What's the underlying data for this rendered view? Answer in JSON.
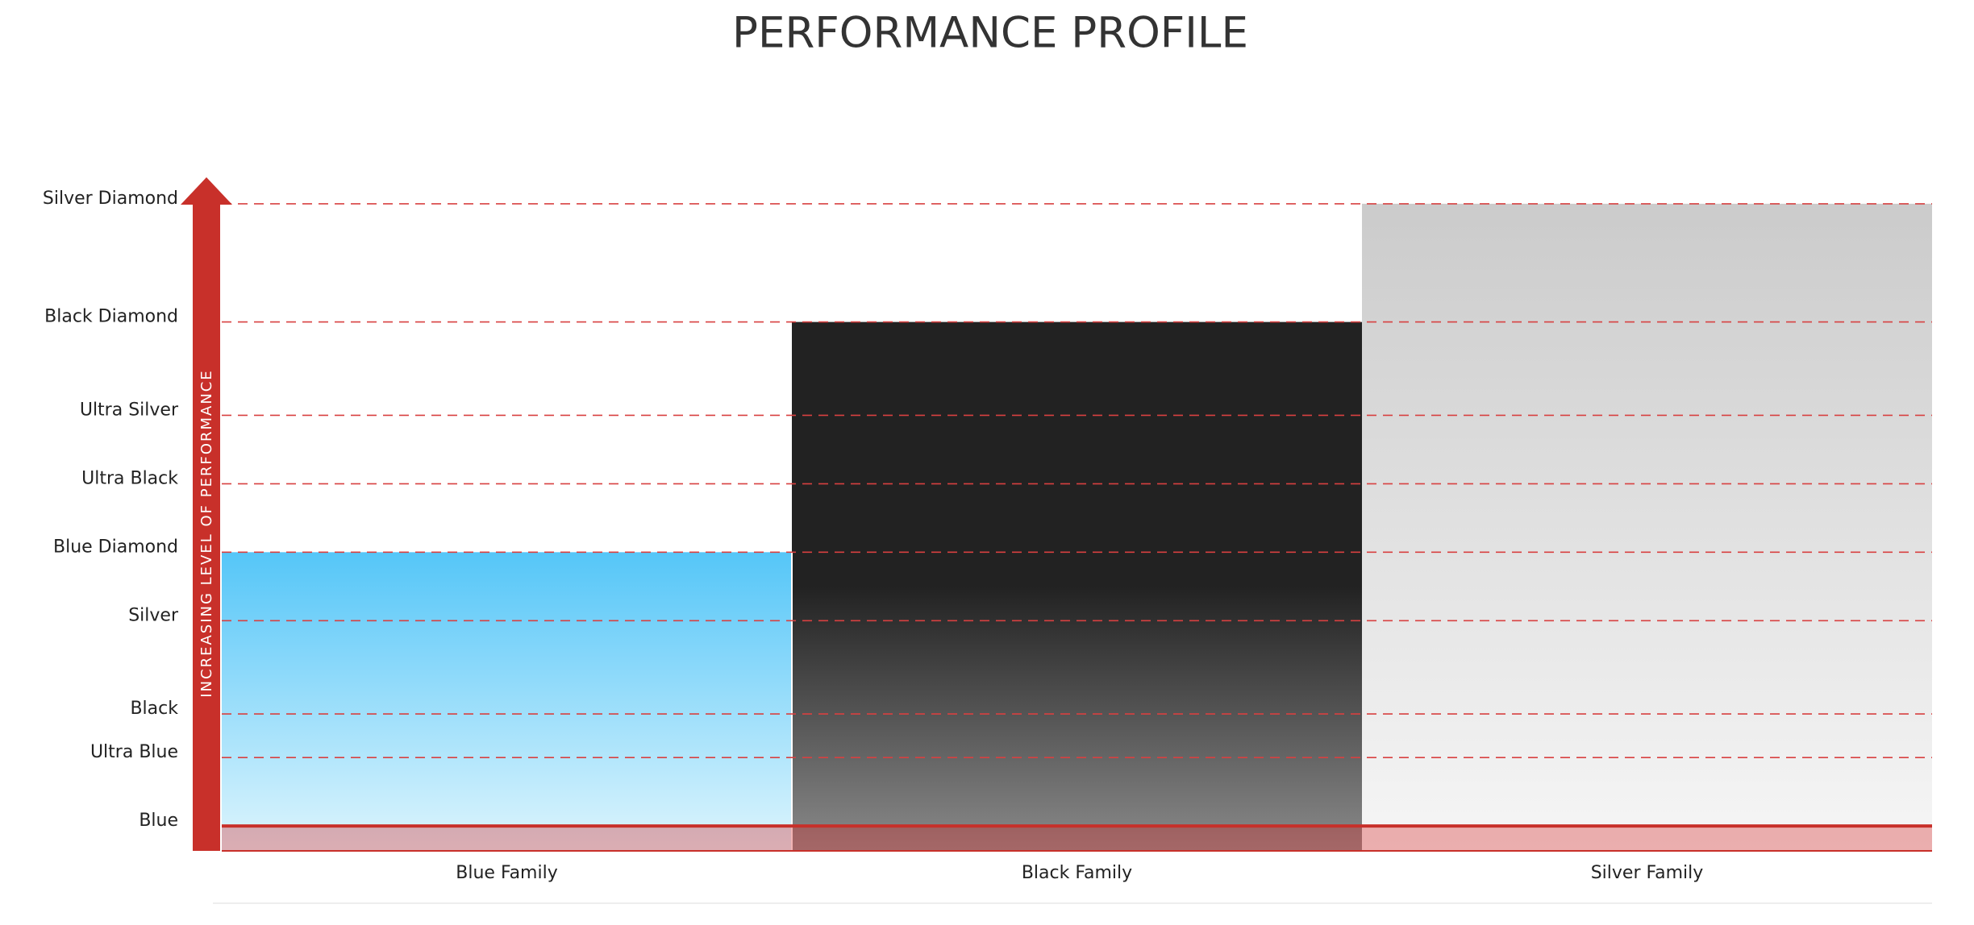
{
  "chart_data": {
    "type": "bar",
    "title": "PERFORMANCE PROFILE",
    "y_label": "INCREASING LEVEL OF PERFORMANCE",
    "categories": [
      "Blue Family",
      "Black Family",
      "Silver Family"
    ],
    "values": [
      44,
      81,
      100
    ],
    "colors": [
      [
        "#55c6f8",
        "#def5fd"
      ],
      [
        "#222222",
        "#8a8a8a"
      ],
      [
        "#cbcbcb",
        "#f6f6f6"
      ]
    ],
    "ylim": [
      -4,
      104
    ],
    "yticks": [
      {
        "value": 0,
        "label": "Blue"
      },
      {
        "value": 11,
        "label": "Ultra Blue"
      },
      {
        "value": 18,
        "label": "Black"
      },
      {
        "value": 33,
        "label": "Silver"
      },
      {
        "value": 44,
        "label": "Blue Diamond"
      },
      {
        "value": 55,
        "label": "Ultra Black"
      },
      {
        "value": 66,
        "label": "Ultra Silver"
      },
      {
        "value": 81,
        "label": "Black Diamond"
      },
      {
        "value": 100,
        "label": "Silver Diamond"
      }
    ],
    "grid": true
  }
}
